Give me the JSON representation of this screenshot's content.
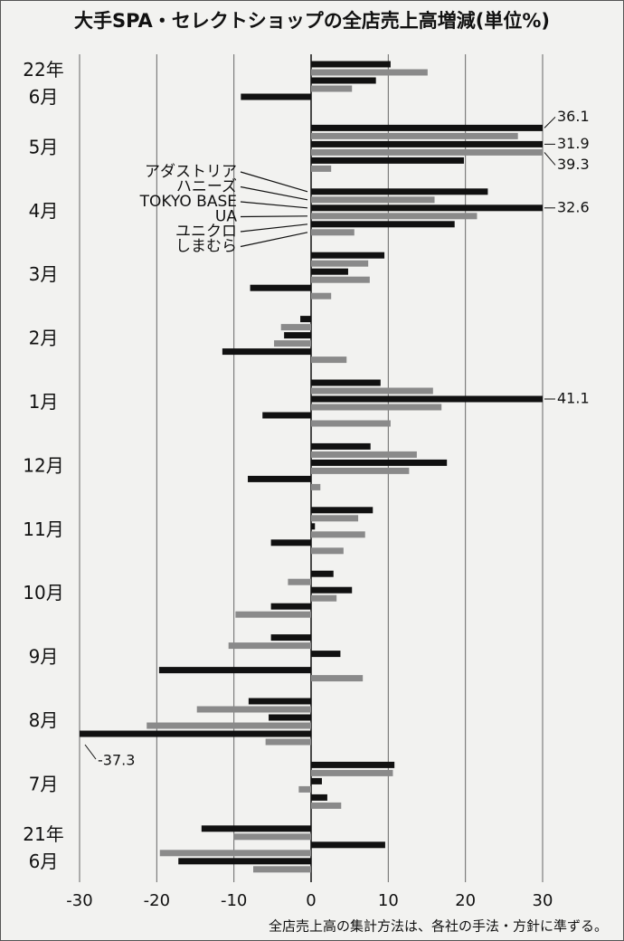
{
  "chart_data": {
    "type": "bar",
    "orientation": "horizontal",
    "title": "大手SPA・セレクトショップの全店売上高増減(単位%)",
    "footnote": "全店売上高の集計方法は、各社の手法・方針に準ずる。",
    "categories": [
      "22年\n6月",
      "5月",
      "4月",
      "3月",
      "2月",
      "1月",
      "12月",
      "11月",
      "10月",
      "9月",
      "8月",
      "7月",
      "21年\n6月"
    ],
    "xlim": [
      -30,
      30
    ],
    "xticks": [
      -30,
      -20,
      -10,
      0,
      10,
      20,
      30
    ],
    "grid": true,
    "series": [
      {
        "name": "アダストリア",
        "color": "#111111",
        "values": [
          10.3,
          36.1,
          22.9,
          9.5,
          -1.4,
          9.0,
          7.7,
          8.0,
          2.9,
          -5.2,
          -8.1,
          10.8,
          -14.2
        ],
        "value_labels": [
          null,
          "36.1",
          null,
          null,
          null,
          null,
          null,
          null,
          null,
          null,
          null,
          null,
          null
        ]
      },
      {
        "name": "ハニーズ",
        "color": "#8a8a8a",
        "values": [
          15.1,
          26.8,
          16.0,
          7.4,
          -3.9,
          15.8,
          13.7,
          6.1,
          -3.0,
          -10.7,
          -14.8,
          10.6,
          -10.0
        ]
      },
      {
        "name": "TOKYO BASE",
        "color": "#111111",
        "values": [
          8.4,
          31.9,
          32.6,
          4.8,
          -3.5,
          41.1,
          17.6,
          0.5,
          5.3,
          3.8,
          -5.5,
          1.4,
          9.6
        ],
        "value_labels": [
          null,
          "31.9",
          "32.6",
          null,
          null,
          "41.1",
          null,
          null,
          null,
          null,
          null,
          null,
          null
        ]
      },
      {
        "name": "UA",
        "color": "#8a8a8a",
        "values": [
          5.3,
          39.3,
          21.5,
          7.6,
          -4.8,
          16.9,
          12.7,
          7.0,
          3.3,
          0,
          -21.3,
          -1.6,
          -19.6
        ],
        "value_labels": [
          null,
          "39.3",
          null,
          null,
          null,
          null,
          null,
          null,
          null,
          null,
          null,
          null,
          null
        ]
      },
      {
        "name": "ユニクロ",
        "color": "#111111",
        "values": [
          -9.1,
          19.8,
          18.6,
          -7.9,
          -11.5,
          -6.3,
          -8.2,
          -5.2,
          -5.2,
          -19.7,
          -37.3,
          2.1,
          -17.2
        ],
        "value_labels": [
          null,
          null,
          null,
          null,
          null,
          null,
          null,
          null,
          null,
          null,
          "-37.3",
          null,
          null
        ]
      },
      {
        "name": "しまむら",
        "color": "#8a8a8a",
        "values": [
          null,
          2.6,
          5.6,
          2.6,
          4.6,
          10.3,
          1.2,
          4.2,
          -9.8,
          6.7,
          -5.9,
          3.9,
          -7.5
        ]
      }
    ]
  }
}
